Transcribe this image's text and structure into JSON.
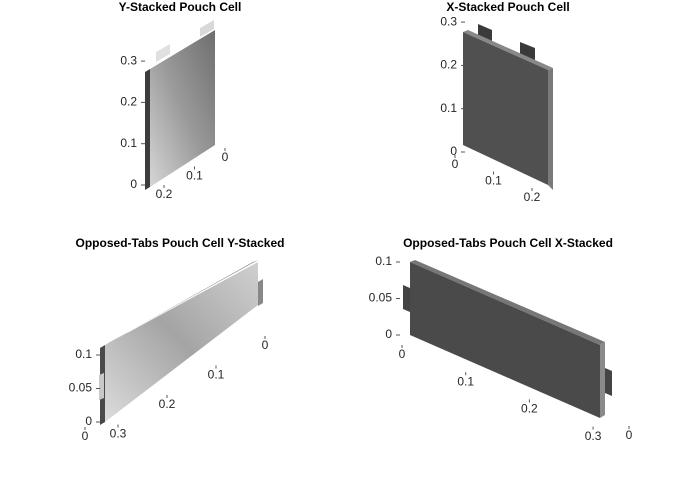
{
  "chart_data": [
    {
      "type": "pouch3d",
      "title": "Y-Stacked Pouch Cell",
      "zticks": [
        0,
        0.1,
        0.2,
        0.3
      ],
      "yticks": [
        0,
        0.1,
        0.2
      ]
    },
    {
      "type": "pouch3d",
      "title": "X-Stacked Pouch Cell",
      "zticks": [
        0,
        0.1,
        0.2,
        0.3
      ],
      "xticks": [
        0,
        0.1,
        0.2
      ]
    },
    {
      "type": "pouch3d",
      "title": "Opposed-Tabs Pouch Cell Y-Stacked",
      "zticks": [
        0,
        0.05,
        0.1
      ],
      "yticks": [
        0,
        0.1,
        0.2,
        0.3
      ],
      "xticks": [
        0
      ]
    },
    {
      "type": "pouch3d",
      "title": "Opposed-Tabs Pouch Cell X-Stacked",
      "zticks": [
        0,
        0.05,
        0.1
      ],
      "xticks": [
        0,
        0.1,
        0.2,
        0.3
      ],
      "yticks": [
        0
      ]
    }
  ]
}
